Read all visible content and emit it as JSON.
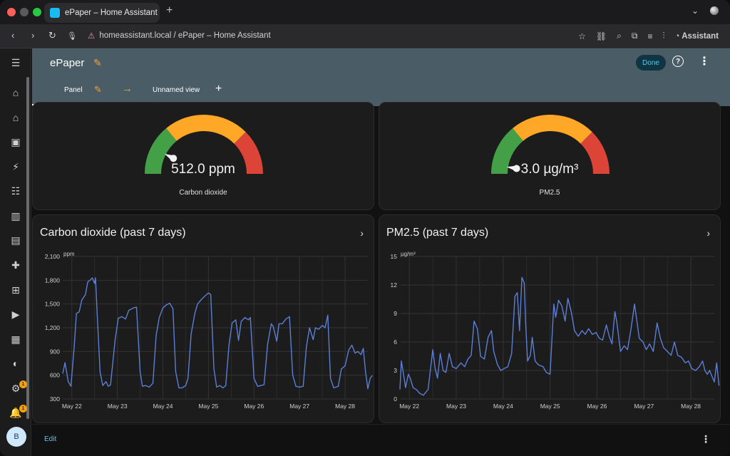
{
  "browser": {
    "tab_title": "ePaper – Home Assistant",
    "url": "homeassistant.local / ePaper – Home Assistant",
    "assistant_label": "Assistant"
  },
  "header": {
    "title": "ePaper",
    "done_label": "Done",
    "tabs": [
      {
        "label": "Panel"
      },
      {
        "label": "Unnamed view"
      }
    ]
  },
  "sidebar": {
    "icons": [
      "menu-icon",
      "overview-icon",
      "home-icon",
      "map-icon",
      "energy-icon",
      "logbook-icon",
      "history-icon",
      "media-icon",
      "addons-icon",
      "hacs-icon",
      "media-browser-icon",
      "todo-icon",
      "zwave-icon",
      "settings-icon",
      "notifications-icon"
    ],
    "settings_badge": "1",
    "notifications_badge": "1",
    "avatar_initial": "B"
  },
  "gauges": [
    {
      "value": "512.0 ppm",
      "label": "Carbon dioxide",
      "level": 0.15,
      "colors": [
        "#43a047",
        "#ffa726",
        "#db4437"
      ]
    },
    {
      "value": "3.0 µg/m³",
      "label": "PM2.5",
      "level": 0.05,
      "colors": [
        "#43a047",
        "#ffa726",
        "#db4437"
      ]
    }
  ],
  "footer": {
    "edit_label": "Edit"
  },
  "chart_data": [
    {
      "type": "line",
      "title": "Carbon dioxide (past 7 days)",
      "ylabel": "ppm",
      "ylim": [
        300,
        2100
      ],
      "yticks": [
        "2,100",
        "1,800",
        "1,500",
        "1,200",
        "900",
        "600",
        "300"
      ],
      "yticks_values": [
        2100,
        1800,
        1500,
        1200,
        900,
        600,
        300
      ],
      "xticks": [
        "May 22",
        "May 23",
        "May 24",
        "May 25",
        "May 26",
        "May 27",
        "May 28"
      ],
      "xticks_values": [
        0.2,
        1.2,
        2.2,
        3.2,
        4.2,
        5.2,
        6.2
      ],
      "xlim": [
        0,
        6.7
      ],
      "color": "#5b7fd6",
      "series": [
        {
          "points": [
            [
              0,
              620
            ],
            [
              0.05,
              760
            ],
            [
              0.12,
              520
            ],
            [
              0.18,
              460
            ],
            [
              0.25,
              950
            ],
            [
              0.3,
              1380
            ],
            [
              0.36,
              1400
            ],
            [
              0.42,
              1550
            ],
            [
              0.5,
              1620
            ],
            [
              0.55,
              1780
            ],
            [
              0.6,
              1800
            ],
            [
              0.65,
              1830
            ],
            [
              0.7,
              1760
            ],
            [
              0.72,
              1830
            ],
            [
              0.75,
              1450
            ],
            [
              0.82,
              640
            ],
            [
              0.88,
              470
            ],
            [
              0.95,
              520
            ],
            [
              1.0,
              460
            ],
            [
              1.05,
              480
            ],
            [
              1.15,
              1050
            ],
            [
              1.22,
              1320
            ],
            [
              1.3,
              1340
            ],
            [
              1.38,
              1310
            ],
            [
              1.45,
              1420
            ],
            [
              1.55,
              1450
            ],
            [
              1.62,
              1460
            ],
            [
              1.7,
              640
            ],
            [
              1.75,
              460
            ],
            [
              1.82,
              470
            ],
            [
              1.9,
              450
            ],
            [
              1.98,
              500
            ],
            [
              2.05,
              1100
            ],
            [
              2.12,
              1330
            ],
            [
              2.2,
              1450
            ],
            [
              2.28,
              1490
            ],
            [
              2.35,
              1510
            ],
            [
              2.42,
              1440
            ],
            [
              2.48,
              650
            ],
            [
              2.55,
              440
            ],
            [
              2.62,
              440
            ],
            [
              2.7,
              470
            ],
            [
              2.75,
              560
            ],
            [
              2.82,
              1120
            ],
            [
              2.9,
              1380
            ],
            [
              2.96,
              1500
            ],
            [
              3.05,
              1560
            ],
            [
              3.12,
              1600
            ],
            [
              3.2,
              1640
            ],
            [
              3.25,
              1620
            ],
            [
              3.32,
              680
            ],
            [
              3.38,
              450
            ],
            [
              3.45,
              470
            ],
            [
              3.52,
              440
            ],
            [
              3.58,
              470
            ],
            [
              3.65,
              980
            ],
            [
              3.72,
              1260
            ],
            [
              3.8,
              1300
            ],
            [
              3.86,
              1040
            ],
            [
              3.92,
              1280
            ],
            [
              4.0,
              1330
            ],
            [
              4.08,
              1300
            ],
            [
              4.12,
              1330
            ],
            [
              4.2,
              560
            ],
            [
              4.28,
              460
            ],
            [
              4.35,
              470
            ],
            [
              4.42,
              480
            ],
            [
              4.5,
              1000
            ],
            [
              4.58,
              1250
            ],
            [
              4.62,
              1220
            ],
            [
              4.7,
              1030
            ],
            [
              4.75,
              1250
            ],
            [
              4.82,
              1250
            ],
            [
              4.9,
              1310
            ],
            [
              4.98,
              1340
            ],
            [
              5.05,
              600
            ],
            [
              5.12,
              460
            ],
            [
              5.2,
              450
            ],
            [
              5.28,
              460
            ],
            [
              5.35,
              960
            ],
            [
              5.42,
              1200
            ],
            [
              5.5,
              1050
            ],
            [
              5.55,
              1200
            ],
            [
              5.62,
              1180
            ],
            [
              5.7,
              1230
            ],
            [
              5.76,
              1200
            ],
            [
              5.82,
              1360
            ],
            [
              5.88,
              560
            ],
            [
              5.95,
              440
            ],
            [
              6.05,
              460
            ],
            [
              6.12,
              680
            ],
            [
              6.2,
              720
            ],
            [
              6.28,
              920
            ],
            [
              6.35,
              980
            ],
            [
              6.42,
              880
            ],
            [
              6.48,
              900
            ],
            [
              6.55,
              860
            ],
            [
              6.6,
              940
            ],
            [
              6.65,
              640
            ],
            [
              6.7,
              430
            ],
            [
              6.75,
              560
            ],
            [
              6.8,
              600
            ]
          ]
        }
      ]
    },
    {
      "type": "line",
      "title": "PM2.5 (past 7 days)",
      "ylabel": "µg/m³",
      "ylim": [
        0,
        15
      ],
      "yticks": [
        "15",
        "12",
        "9",
        "6",
        "3",
        "0"
      ],
      "yticks_values": [
        15,
        12,
        9,
        6,
        3,
        0
      ],
      "xticks": [
        "May 22",
        "May 23",
        "May 24",
        "May 25",
        "May 26",
        "May 27",
        "May 28"
      ],
      "xticks_values": [
        0.2,
        1.2,
        2.2,
        3.2,
        4.2,
        5.2,
        6.2
      ],
      "xlim": [
        0,
        6.7
      ],
      "color": "#5b7fd6",
      "series": [
        {
          "points": [
            [
              0,
              1.0
            ],
            [
              0.03,
              4.0
            ],
            [
              0.08,
              2.5
            ],
            [
              0.12,
              1.2
            ],
            [
              0.18,
              2.6
            ],
            [
              0.22,
              2.2
            ],
            [
              0.28,
              1.2
            ],
            [
              0.35,
              1.0
            ],
            [
              0.42,
              0.6
            ],
            [
              0.5,
              0.4
            ],
            [
              0.6,
              1.0
            ],
            [
              0.7,
              5.2
            ],
            [
              0.75,
              3.2
            ],
            [
              0.8,
              2.2
            ],
            [
              0.86,
              4.8
            ],
            [
              0.92,
              3.0
            ],
            [
              0.98,
              2.8
            ],
            [
              1.05,
              4.8
            ],
            [
              1.12,
              3.4
            ],
            [
              1.2,
              3.2
            ],
            [
              1.3,
              3.8
            ],
            [
              1.38,
              3.4
            ],
            [
              1.45,
              4.2
            ],
            [
              1.52,
              4.6
            ],
            [
              1.58,
              8.2
            ],
            [
              1.65,
              7.4
            ],
            [
              1.72,
              4.5
            ],
            [
              1.8,
              4.2
            ],
            [
              1.88,
              6.5
            ],
            [
              1.95,
              7.2
            ],
            [
              2.0,
              5.0
            ],
            [
              2.08,
              3.6
            ],
            [
              2.15,
              3.0
            ],
            [
              2.22,
              3.2
            ],
            [
              2.3,
              3.4
            ],
            [
              2.38,
              4.8
            ],
            [
              2.45,
              10.8
            ],
            [
              2.5,
              11.2
            ],
            [
              2.55,
              7.2
            ],
            [
              2.6,
              12.8
            ],
            [
              2.65,
              12.2
            ],
            [
              2.68,
              8.0
            ],
            [
              2.72,
              4.0
            ],
            [
              2.78,
              4.6
            ],
            [
              2.82,
              6.5
            ],
            [
              2.88,
              4.0
            ],
            [
              2.95,
              3.6
            ],
            [
              3.05,
              3.4
            ],
            [
              3.12,
              2.8
            ],
            [
              3.2,
              2.6
            ],
            [
              3.28,
              10.0
            ],
            [
              3.32,
              8.6
            ],
            [
              3.38,
              10.4
            ],
            [
              3.45,
              9.8
            ],
            [
              3.52,
              8.2
            ],
            [
              3.58,
              10.6
            ],
            [
              3.65,
              9.2
            ],
            [
              3.72,
              7.2
            ],
            [
              3.8,
              6.6
            ],
            [
              3.88,
              7.2
            ],
            [
              3.95,
              6.8
            ],
            [
              4.02,
              7.4
            ],
            [
              4.1,
              6.8
            ],
            [
              4.18,
              7.0
            ],
            [
              4.25,
              6.4
            ],
            [
              4.32,
              6.2
            ],
            [
              4.4,
              7.8
            ],
            [
              4.46,
              6.6
            ],
            [
              4.52,
              5.8
            ],
            [
              4.58,
              9.2
            ],
            [
              4.62,
              8.2
            ],
            [
              4.7,
              5.0
            ],
            [
              4.78,
              5.6
            ],
            [
              4.85,
              5.2
            ],
            [
              4.92,
              7.2
            ],
            [
              5.0,
              10.0
            ],
            [
              5.05,
              8.2
            ],
            [
              5.1,
              6.4
            ],
            [
              5.18,
              6.0
            ],
            [
              5.25,
              5.2
            ],
            [
              5.32,
              5.8
            ],
            [
              5.4,
              5.0
            ],
            [
              5.48,
              8.0
            ],
            [
              5.55,
              6.4
            ],
            [
              5.62,
              5.4
            ],
            [
              5.7,
              5.0
            ],
            [
              5.78,
              4.6
            ],
            [
              5.85,
              6.0
            ],
            [
              5.92,
              4.6
            ],
            [
              6.0,
              4.4
            ],
            [
              6.08,
              3.8
            ],
            [
              6.15,
              4.0
            ],
            [
              6.22,
              3.2
            ],
            [
              6.3,
              3.0
            ],
            [
              6.38,
              3.4
            ],
            [
              6.45,
              4.0
            ],
            [
              6.5,
              3.0
            ],
            [
              6.55,
              2.6
            ],
            [
              6.6,
              3.0
            ],
            [
              6.65,
              2.4
            ],
            [
              6.7,
              1.8
            ],
            [
              6.75,
              3.8
            ],
            [
              6.8,
              1.4
            ]
          ]
        }
      ]
    }
  ]
}
